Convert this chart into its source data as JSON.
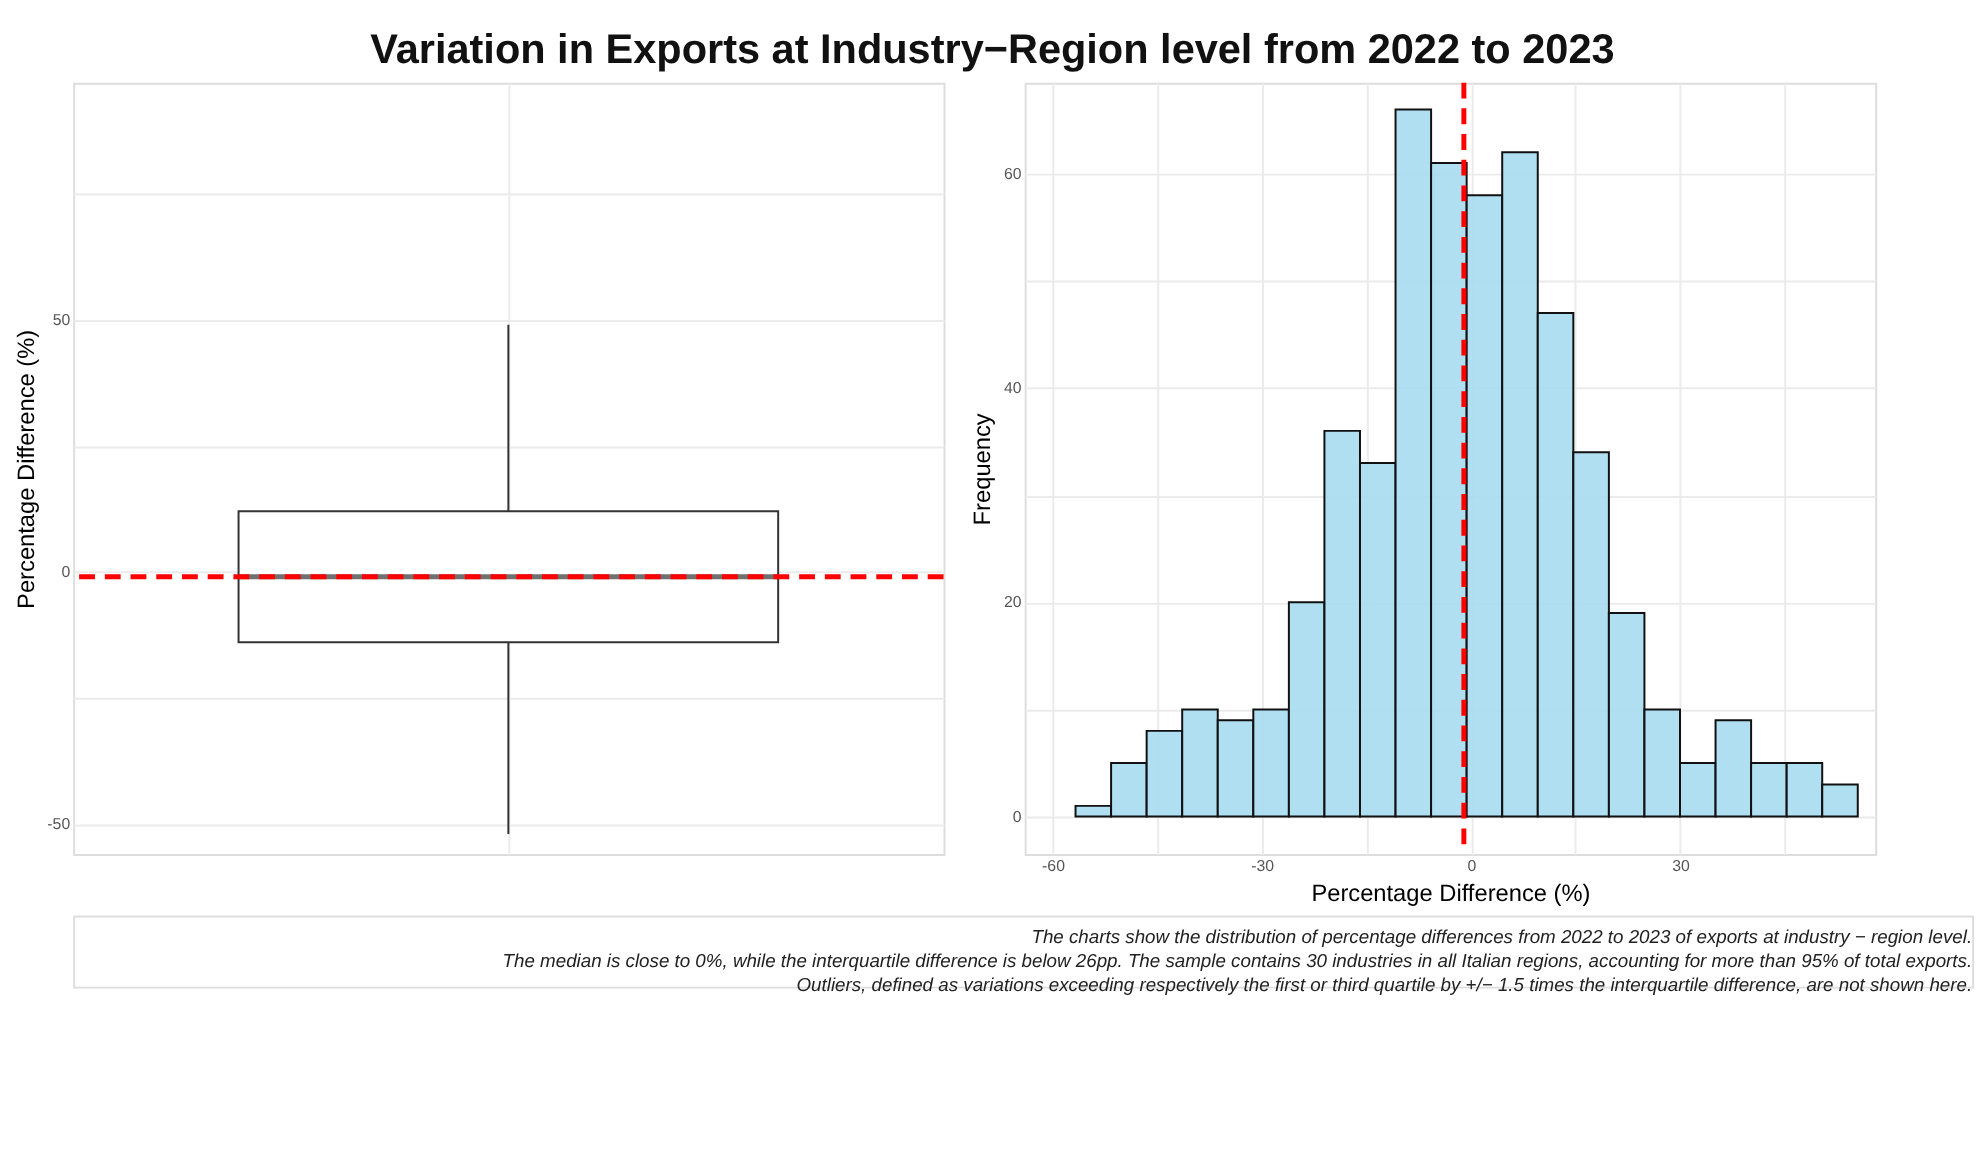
{
  "chart_data": [
    {
      "type": "box",
      "title": "Variation in Exports at Industry−Region level from 2022 to 2023",
      "ylabel": "Percentage Difference (%)",
      "categories": [
        null
      ],
      "boxes": [
        {
          "low": -52,
          "q1": -14,
          "median": -1,
          "q3": 12,
          "high": 49
        }
      ],
      "ylim": [
        -56,
        97
      ],
      "yticks": [
        {
          "value": -50,
          "label": "-50"
        },
        {
          "value": -25,
          "label": null
        },
        0,
        {
          "value": 25,
          "label": null
        },
        50,
        {
          "value": 75,
          "label": null
        }
      ],
      "ref_lines": [
        {
          "axis": "y",
          "value": -1,
          "color": "#ff0000",
          "line_style": "dashed"
        }
      ],
      "grid": true,
      "tick_labels": "y"
    },
    {
      "type": "histogram",
      "xlabel": "Percentage Difference (%)",
      "ylabel": "Frequency",
      "bins": [
        -56.7,
        -51.6,
        -46.5,
        -41.4,
        -36.3,
        -31.2,
        -26.1,
        -21.0,
        -15.9,
        -10.8,
        -5.7,
        -0.6,
        4.5,
        9.6,
        14.7,
        19.8,
        24.9,
        30.0,
        35.1,
        40.2,
        45.3,
        50.4,
        55.5
      ],
      "values": [
        1,
        5,
        8,
        10,
        9,
        10,
        20,
        36,
        33,
        66,
        61,
        58,
        62,
        47,
        34,
        19,
        10,
        5,
        9,
        5,
        5,
        3
      ],
      "color": "#a6dcef",
      "xlim": [
        -64,
        58
      ],
      "xticks": [
        {
          "value": -60,
          "label": "-60"
        },
        {
          "value": -45,
          "label": null
        },
        {
          "value": -30,
          "label": "-30"
        },
        {
          "value": -15,
          "label": null
        },
        0,
        {
          "value": 15,
          "label": null
        },
        30,
        {
          "value": 45,
          "label": null
        }
      ],
      "ylim": [
        -3.5,
        68.5
      ],
      "yticks": [
        0,
        {
          "value": 10,
          "label": null
        },
        20,
        {
          "value": 30,
          "label": null
        },
        40,
        {
          "value": 50,
          "label": null
        },
        60
      ],
      "ref_lines": [
        {
          "axis": "x",
          "value": -1,
          "color": "#ff0000",
          "line_style": "dashed"
        }
      ],
      "grid": true,
      "annotations": [
        "The charts show the distribution of percentage differences from 2022 to 2023 of exports at industry − region level.",
        "The median is close to 0%, while the interquartile difference is below 26pp. The sample contains 30 industries in all Italian regions, accounting for more than 95% of total exports.",
        "Outliers, defined as variations exceeding respectively the first or third quartile by +/− 1.5 times the interquartile difference, are not shown here."
      ]
    }
  ]
}
